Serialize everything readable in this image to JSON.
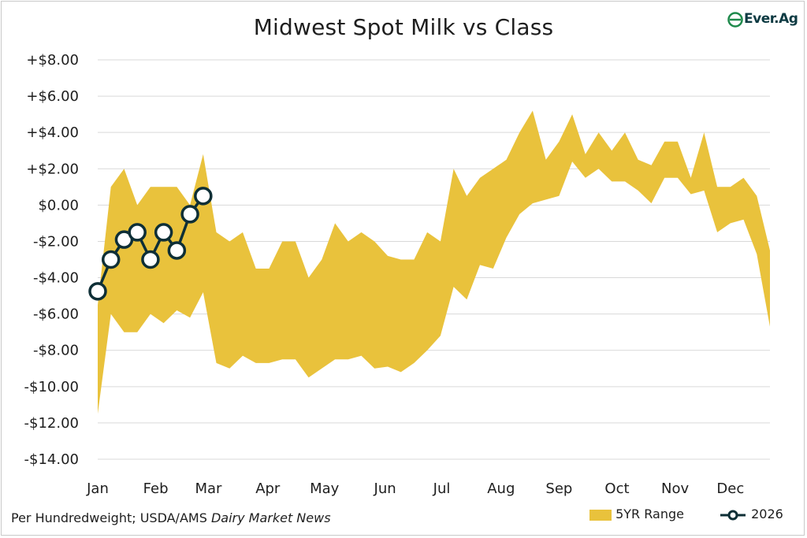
{
  "title": "Midwest Spot Milk vs Class",
  "logo": {
    "text": "Ever.Ag",
    "icon": "everag-leaf-logo"
  },
  "source": {
    "prefix": "Per Hundredweight; USDA/AMS ",
    "italic": "Dairy Market News"
  },
  "legend": {
    "range_label": "5YR Range",
    "series_label": "2026"
  },
  "colors": {
    "range_fill": "#e9c23c",
    "series_line": "#0e2f36",
    "marker_fill": "#ffffff",
    "grid": "#d9d9d9",
    "text": "#1e1e1e"
  },
  "chart_data": {
    "type": "area",
    "title": "Midwest Spot Milk vs Class",
    "xlabel": "",
    "ylabel": "",
    "x_range": [
      1,
      52
    ],
    "ylim": [
      -14,
      8
    ],
    "y_ticks": [
      8,
      6,
      4,
      2,
      0,
      -2,
      -4,
      -6,
      -8,
      -10,
      -12,
      -14
    ],
    "y_tick_labels": [
      "+$8.00",
      "+$6.00",
      "+$4.00",
      "+$2.00",
      "$0.00",
      "-$2.00",
      "-$4.00",
      "-$6.00",
      "-$8.00",
      "-$10.00",
      "-$12.00",
      "-$14.00"
    ],
    "month_labels": [
      "Jan",
      "Feb",
      "Mar",
      "Apr",
      "May",
      "Jun",
      "Jul",
      "Aug",
      "Sep",
      "Oct",
      "Nov",
      "Dec"
    ],
    "month_label_weeks": [
      1.0,
      5.4,
      9.4,
      13.9,
      18.2,
      22.8,
      27.1,
      31.6,
      36.0,
      40.4,
      44.8,
      49.0
    ],
    "grid": true,
    "legend_position": "bottom-right",
    "series": [
      {
        "name": "5YR Range",
        "kind": "range",
        "weeks": [
          1,
          2,
          3,
          4,
          5,
          6,
          7,
          8,
          9,
          10,
          11,
          12,
          13,
          14,
          15,
          16,
          17,
          18,
          19,
          20,
          21,
          22,
          23,
          24,
          25,
          26,
          27,
          28,
          29,
          30,
          31,
          32,
          33,
          34,
          35,
          36,
          37,
          38,
          39,
          40,
          41,
          42,
          43,
          44,
          45,
          46,
          47,
          48,
          49,
          50,
          51,
          52
        ],
        "high": [
          -5.5,
          1.0,
          2.0,
          0.0,
          1.0,
          1.0,
          1.0,
          0.0,
          2.8,
          -1.5,
          -2.0,
          -1.5,
          -3.5,
          -3.5,
          -2.0,
          -2.0,
          -4.0,
          -3.0,
          -1.0,
          -2.0,
          -1.5,
          -2.0,
          -2.8,
          -3.0,
          -3.0,
          -1.5,
          -2.0,
          2.0,
          0.5,
          1.5,
          2.0,
          2.5,
          4.0,
          5.2,
          2.5,
          3.5,
          5.0,
          2.8,
          4.0,
          3.0,
          4.0,
          2.5,
          2.2,
          3.5,
          3.5,
          1.5,
          4.0,
          1.0,
          1.0,
          1.5,
          0.5,
          -2.5
        ],
        "low": [
          -11.5,
          -6.0,
          -7.0,
          -7.0,
          -6.0,
          -6.5,
          -5.8,
          -6.2,
          -4.8,
          -8.7,
          -9.0,
          -8.3,
          -8.7,
          -8.7,
          -8.5,
          -8.5,
          -9.5,
          -9.0,
          -8.5,
          -8.5,
          -8.3,
          -9.0,
          -8.9,
          -9.2,
          -8.7,
          -8.0,
          -7.2,
          -4.5,
          -5.2,
          -3.3,
          -3.5,
          -1.8,
          -0.5,
          0.1,
          0.3,
          0.5,
          2.4,
          1.5,
          2.0,
          1.3,
          1.3,
          0.8,
          0.1,
          1.5,
          1.5,
          0.6,
          0.8,
          -1.5,
          -1.0,
          -0.8,
          -2.7,
          -6.7
        ]
      },
      {
        "name": "2026",
        "kind": "line",
        "weeks": [
          1,
          2,
          3,
          4,
          5,
          6,
          7,
          8,
          9
        ],
        "values": [
          -4.75,
          -3.0,
          -1.9,
          -1.5,
          -3.0,
          -1.5,
          -2.5,
          -0.5,
          0.5
        ]
      }
    ]
  }
}
